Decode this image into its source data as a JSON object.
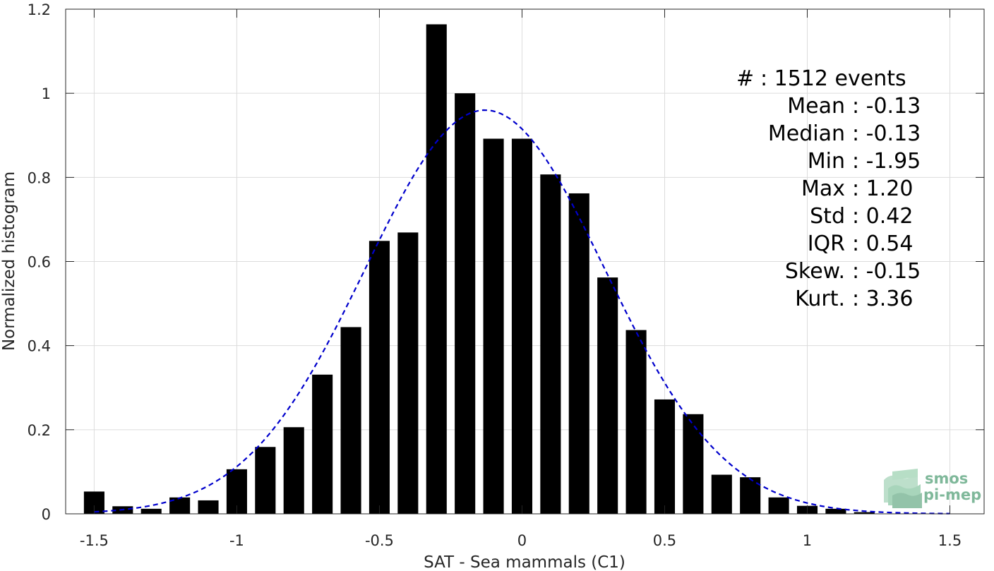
{
  "chart_data": {
    "type": "bar",
    "xlabel": "SAT - Sea mammals (C1)",
    "ylabel": "Normalized histogram",
    "xlim": [
      -1.6,
      1.62
    ],
    "ylim": [
      0,
      1.2
    ],
    "grid": true,
    "xticks": [
      -1.5,
      -1,
      -0.5,
      0,
      0.5,
      1,
      1.5
    ],
    "xtick_labels": [
      "-1.5",
      "-1",
      "-0.5",
      "0",
      "0.5",
      "1",
      "1.5"
    ],
    "yticks": [
      0,
      0.2,
      0.4,
      0.6,
      0.8,
      1,
      1.2
    ],
    "ytick_labels": [
      "0",
      "0.2",
      "0.4",
      "0.6",
      "0.8",
      "1",
      "1.2"
    ],
    "bar_width": 0.072,
    "bar_color": "#000000",
    "bars": [
      {
        "x": -1.5,
        "y": 0.053
      },
      {
        "x": -1.4,
        "y": 0.018
      },
      {
        "x": -1.3,
        "y": 0.012
      },
      {
        "x": -1.2,
        "y": 0.039
      },
      {
        "x": -1.1,
        "y": 0.032
      },
      {
        "x": -1.0,
        "y": 0.106
      },
      {
        "x": -0.9,
        "y": 0.159
      },
      {
        "x": -0.8,
        "y": 0.206
      },
      {
        "x": -0.7,
        "y": 0.331
      },
      {
        "x": -0.6,
        "y": 0.444
      },
      {
        "x": -0.5,
        "y": 0.649
      },
      {
        "x": -0.4,
        "y": 0.669
      },
      {
        "x": -0.3,
        "y": 1.164
      },
      {
        "x": -0.2,
        "y": 1.0
      },
      {
        "x": -0.1,
        "y": 0.892
      },
      {
        "x": 0.0,
        "y": 0.892
      },
      {
        "x": 0.1,
        "y": 0.807
      },
      {
        "x": 0.2,
        "y": 0.762
      },
      {
        "x": 0.3,
        "y": 0.562
      },
      {
        "x": 0.4,
        "y": 0.437
      },
      {
        "x": 0.5,
        "y": 0.272
      },
      {
        "x": 0.6,
        "y": 0.237
      },
      {
        "x": 0.7,
        "y": 0.093
      },
      {
        "x": 0.8,
        "y": 0.087
      },
      {
        "x": 0.9,
        "y": 0.039
      },
      {
        "x": 1.0,
        "y": 0.019
      },
      {
        "x": 1.1,
        "y": 0.012
      },
      {
        "x": 1.2,
        "y": 0.004
      }
    ],
    "fit_curve": {
      "color": "#0000cc",
      "style": "dashed",
      "mean": -0.13,
      "std": 0.42,
      "peak": 0.96,
      "x_range": [
        -1.5,
        1.5
      ]
    },
    "stats_text": [
      {
        "label": "#",
        "sep": ":",
        "value": "1512 events"
      },
      {
        "label": "Mean",
        "sep": ":",
        "value": "-0.13"
      },
      {
        "label": "Median",
        "sep": ":",
        "value": "-0.13"
      },
      {
        "label": "Min",
        "sep": ":",
        "value": "-1.95"
      },
      {
        "label": "Max",
        "sep": ":",
        "value": "1.20"
      },
      {
        "label": "Std",
        "sep": ":",
        "value": "0.42"
      },
      {
        "label": "IQR",
        "sep": ":",
        "value": "0.54"
      },
      {
        "label": "Skew.",
        "sep": ":",
        "value": "-0.15"
      },
      {
        "label": "Kurt.",
        "sep": ":",
        "value": "3.36"
      }
    ],
    "logo": {
      "line1": "smos",
      "line2": "pi-mep",
      "color": "#7fb89a"
    }
  }
}
